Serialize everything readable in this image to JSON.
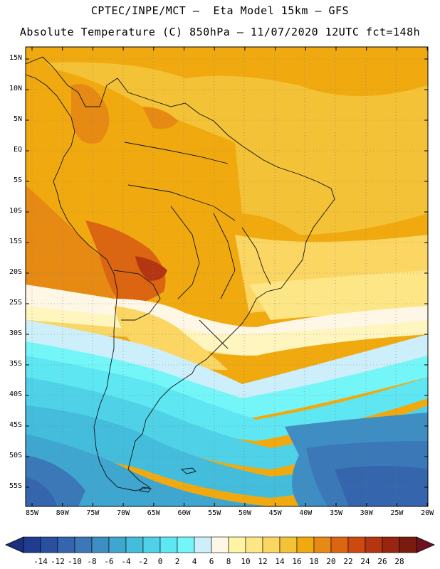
{
  "header": {
    "line1": "CPTEC/INPE/MCT –  Eta Model 15km – GFS",
    "line2": "Absolute Temperature (C) 850hPa – 11/07/2020 12UTC fct=148h"
  },
  "map": {
    "lat_ticks": [
      "15N",
      "10N",
      "5N",
      "EQ",
      "5S",
      "10S",
      "15S",
      "20S",
      "25S",
      "30S",
      "35S",
      "40S",
      "45S",
      "50S",
      "55S"
    ],
    "lon_ticks": [
      "85W",
      "80W",
      "75W",
      "70W",
      "65W",
      "60W",
      "55W",
      "50W",
      "45W",
      "40W",
      "35W",
      "30W",
      "25W",
      "20W"
    ],
    "extent": {
      "lon_min": -86,
      "lon_max": -19,
      "lat_min": -58,
      "lat_max": 16
    },
    "grid": true
  },
  "colorbar": {
    "labels": [
      "-14",
      "-12",
      "-10",
      "-8",
      "-6",
      "-4",
      "-2",
      "0",
      "2",
      "4",
      "6",
      "8",
      "10",
      "12",
      "14",
      "16",
      "18",
      "20",
      "22",
      "24",
      "26",
      "28"
    ],
    "colors": [
      "#203c90",
      "#2a4f9e",
      "#3565ad",
      "#3b78b8",
      "#3e8ec4",
      "#3fa6d0",
      "#44bcdc",
      "#4fd2e8",
      "#5ee6f2",
      "#74f6f9",
      "#cceffb",
      "#fff7e6",
      "#fff4a4",
      "#fde685",
      "#fbd663",
      "#f4c236",
      "#f0aa10",
      "#e68a14",
      "#db6510",
      "#cc4a10",
      "#b33512",
      "#962512",
      "#781c10"
    ],
    "underflow_color": "#1c2f7c",
    "overflow_color": "#6f1020"
  }
}
